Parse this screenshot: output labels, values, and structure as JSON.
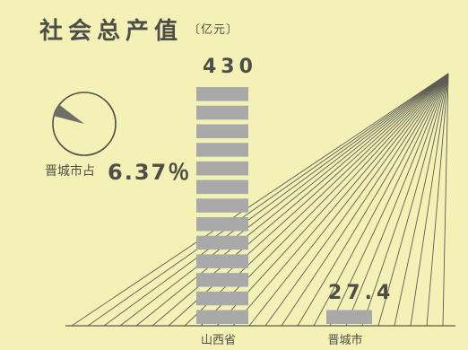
{
  "title": "社会总产值",
  "unit_label": "〔亿元〕",
  "share": {
    "label": "晋城市占",
    "value_text": "6.37％",
    "fraction": 0.0637
  },
  "colors": {
    "background": "#f3f1b6",
    "bar": "#a9a9a9",
    "ink": "#4e4e48"
  },
  "chart_data": {
    "type": "bar",
    "title": "社会总产值",
    "unit": "亿元",
    "categories": [
      "山西省",
      "晋城市"
    ],
    "values": [
      430,
      27.4
    ],
    "value_labels": [
      "430",
      "27.4"
    ],
    "ylim": [
      0,
      430
    ],
    "grid": false,
    "legend": "none"
  }
}
